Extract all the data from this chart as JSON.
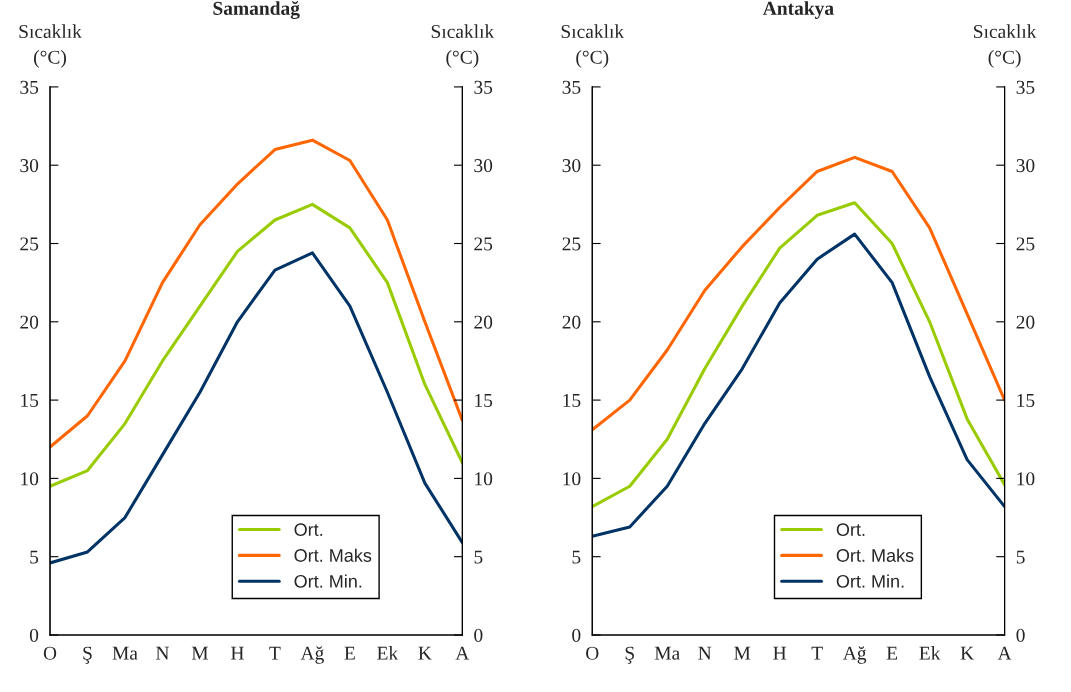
{
  "chart_data": [
    {
      "type": "line",
      "title": "Samandağ",
      "ylabel": "Sıcaklık\n(°C)",
      "y2label": "Sıcaklık\n(°C)",
      "categories": [
        "O",
        "Ş",
        "Ma",
        "N",
        "M",
        "H",
        "T",
        "Ağ",
        "E",
        "Ek",
        "K",
        "A"
      ],
      "series": [
        {
          "name": "Ort.",
          "color": "#99cc00",
          "values": [
            9.5,
            10.5,
            13.5,
            17.5,
            21,
            24.5,
            26.5,
            27.5,
            26,
            22.5,
            16,
            11
          ]
        },
        {
          "name": "Ort. Maks",
          "color": "#ff6600",
          "values": [
            12,
            14,
            17.5,
            22.5,
            26.2,
            28.8,
            31,
            31.6,
            30.3,
            26.5,
            20,
            13.7
          ]
        },
        {
          "name": "Ort. Min.",
          "color": "#003366",
          "values": [
            4.6,
            5.3,
            7.5,
            11.5,
            15.5,
            20,
            23.3,
            24.4,
            21,
            15.5,
            9.7,
            5.9
          ]
        }
      ],
      "ylim": [
        0,
        35
      ],
      "yticks": [
        0,
        5,
        10,
        15,
        20,
        25,
        30,
        35
      ],
      "y2lim": [
        0,
        35
      ],
      "y2ticks": [
        0,
        5,
        10,
        15,
        20,
        25,
        30,
        35
      ],
      "legend": "bottom right",
      "grid": false
    },
    {
      "type": "line",
      "title": "Antakya",
      "ylabel": "Sıcaklık\n(°C)",
      "y2label": "Sıcaklık\n(°C)",
      "categories": [
        "O",
        "Ş",
        "Ma",
        "N",
        "M",
        "H",
        "T",
        "Ağ",
        "E",
        "Ek",
        "K",
        "A"
      ],
      "series": [
        {
          "name": "Ort.",
          "color": "#99cc00",
          "values": [
            8.2,
            9.5,
            12.5,
            17,
            21,
            24.7,
            26.8,
            27.6,
            25,
            20,
            13.8,
            9.6
          ]
        },
        {
          "name": "Ort. Maks",
          "color": "#ff6600",
          "values": [
            13.1,
            15,
            18.2,
            22,
            24.8,
            27.3,
            29.6,
            30.5,
            29.6,
            26,
            20.5,
            15
          ]
        },
        {
          "name": "Ort. Min.",
          "color": "#003366",
          "values": [
            6.3,
            6.9,
            9.5,
            13.5,
            17,
            21.2,
            24,
            25.6,
            22.5,
            16.5,
            11.2,
            8.2
          ]
        }
      ],
      "ylim": [
        0,
        35
      ],
      "yticks": [
        0,
        5,
        10,
        15,
        20,
        25,
        30,
        35
      ],
      "y2lim": [
        0,
        35
      ],
      "y2ticks": [
        0,
        5,
        10,
        15,
        20,
        25,
        30,
        35
      ],
      "legend": "bottom right",
      "grid": false
    }
  ]
}
